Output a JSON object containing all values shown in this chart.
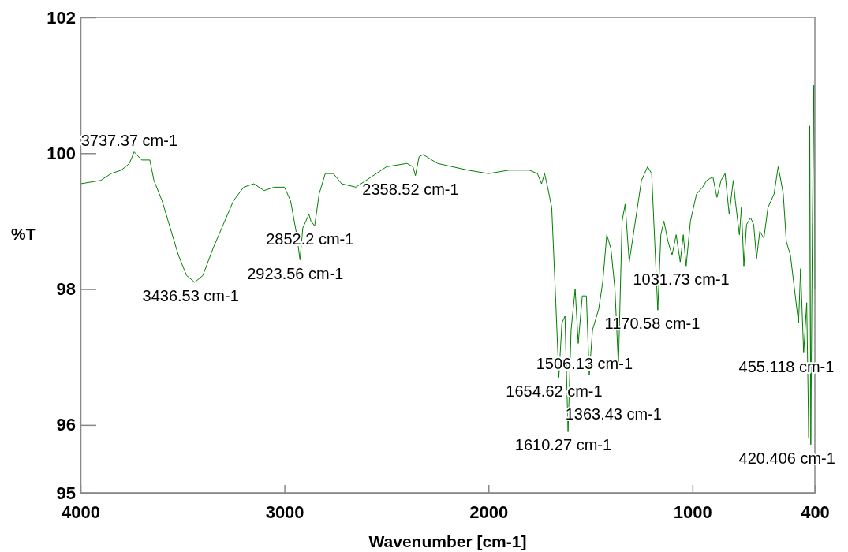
{
  "chart_data": {
    "type": "line",
    "xlabel": "Wavenumber [cm-1]",
    "ylabel": "%T",
    "xlim": [
      4000,
      400
    ],
    "xticks": [
      4000,
      3000,
      2000,
      1000,
      400
    ],
    "ylim": [
      95,
      102
    ],
    "yticks": [
      95,
      96,
      98,
      100,
      102
    ],
    "grid": false,
    "line_style": "solid",
    "series": [
      {
        "color": "#008000",
        "x": [
          4000,
          3900,
          3850,
          3800,
          3760,
          3737,
          3700,
          3660,
          3640,
          3600,
          3560,
          3520,
          3480,
          3440,
          3400,
          3350,
          3300,
          3250,
          3200,
          3150,
          3100,
          3050,
          3000,
          2970,
          2940,
          2924,
          2910,
          2880,
          2870,
          2852,
          2830,
          2800,
          2760,
          2720,
          2650,
          2600,
          2500,
          2400,
          2370,
          2358,
          2340,
          2320,
          2250,
          2100,
          2000,
          1900,
          1800,
          1760,
          1740,
          1725,
          1710,
          1690,
          1670,
          1655,
          1640,
          1625,
          1610,
          1595,
          1575,
          1560,
          1540,
          1520,
          1506,
          1490,
          1460,
          1440,
          1420,
          1400,
          1380,
          1363,
          1345,
          1330,
          1310,
          1290,
          1270,
          1250,
          1220,
          1200,
          1185,
          1170,
          1155,
          1140,
          1120,
          1100,
          1080,
          1060,
          1045,
          1031,
          1010,
          980,
          950,
          930,
          900,
          880,
          860,
          840,
          820,
          800,
          790,
          770,
          760,
          748,
          735,
          715,
          700,
          686,
          670,
          650,
          630,
          600,
          580,
          570,
          555,
          540,
          520,
          500,
          480,
          470,
          455,
          440,
          430,
          425,
          420,
          412,
          405,
          400
        ],
        "values": [
          99.55,
          99.6,
          99.7,
          99.75,
          99.85,
          100.02,
          99.9,
          99.9,
          99.6,
          99.3,
          98.9,
          98.5,
          98.2,
          98.1,
          98.2,
          98.6,
          98.95,
          99.3,
          99.5,
          99.55,
          99.45,
          99.5,
          99.5,
          99.3,
          98.8,
          98.43,
          98.9,
          99.1,
          99.0,
          98.93,
          99.4,
          99.7,
          99.7,
          99.55,
          99.5,
          99.6,
          99.8,
          99.85,
          99.8,
          99.67,
          99.95,
          99.98,
          99.85,
          99.75,
          99.7,
          99.75,
          99.75,
          99.7,
          99.55,
          99.7,
          99.5,
          99.2,
          97.8,
          96.7,
          97.5,
          97.6,
          95.9,
          97.4,
          98.0,
          97.2,
          97.9,
          97.9,
          96.73,
          97.4,
          97.7,
          98.1,
          98.8,
          98.6,
          98.0,
          96.87,
          99.0,
          99.25,
          98.4,
          98.8,
          99.2,
          99.6,
          99.8,
          99.7,
          98.7,
          97.69,
          98.8,
          99.0,
          98.7,
          98.5,
          98.8,
          98.4,
          98.8,
          98.34,
          99.0,
          99.4,
          99.5,
          99.6,
          99.65,
          99.35,
          99.6,
          99.7,
          99.1,
          99.6,
          99.3,
          98.8,
          99.2,
          98.34,
          98.95,
          99.05,
          98.95,
          98.45,
          98.85,
          98.75,
          99.2,
          99.4,
          99.8,
          99.65,
          99.4,
          98.7,
          98.5,
          98.0,
          97.5,
          98.3,
          97.06,
          97.8,
          95.8,
          100.4,
          95.71,
          99.0,
          101.0,
          98.0
        ]
      }
    ],
    "annotations": [
      {
        "text": "3737.37 cm-1",
        "x": 3737.37,
        "y": 100.02
      },
      {
        "text": "3436.53 cm-1",
        "x": 3436.53,
        "y": 98.1
      },
      {
        "text": "2923.56 cm-1",
        "x": 2923.56,
        "y": 98.43
      },
      {
        "text": "2852.2 cm-1",
        "x": 2852.2,
        "y": 98.93
      },
      {
        "text": "2358.52 cm-1",
        "x": 2358.52,
        "y": 99.67
      },
      {
        "text": "1654.62 cm-1",
        "x": 1654.62,
        "y": 96.7
      },
      {
        "text": "1610.27 cm-1",
        "x": 1610.27,
        "y": 95.9
      },
      {
        "text": "1506.13 cm-1",
        "x": 1506.13,
        "y": 96.73
      },
      {
        "text": "1363.43 cm-1",
        "x": 1363.43,
        "y": 96.87
      },
      {
        "text": "1170.58 cm-1",
        "x": 1170.58,
        "y": 97.69
      },
      {
        "text": "1031.73 cm-1",
        "x": 1031.73,
        "y": 98.34
      },
      {
        "text": "455.118 cm-1",
        "x": 455.118,
        "y": 97.06
      },
      {
        "text": "420.406 cm-1",
        "x": 420.406,
        "y": 95.71
      }
    ]
  }
}
